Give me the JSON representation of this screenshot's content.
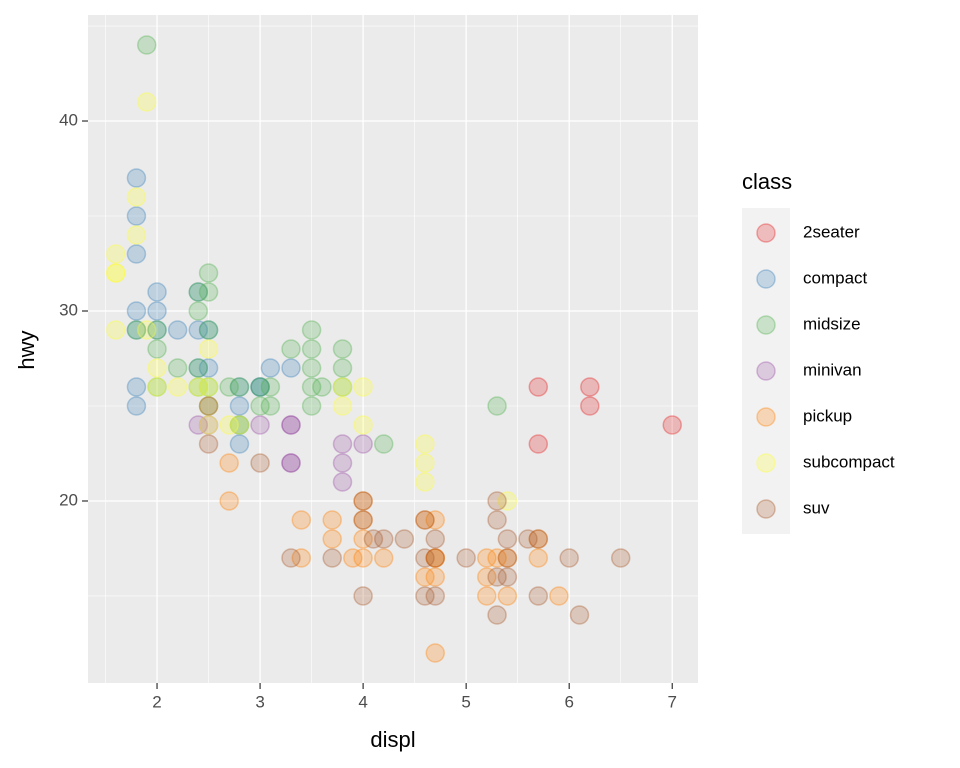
{
  "chart_data": {
    "type": "scatter",
    "x_label": "displ",
    "y_label": "hwy",
    "legend_title": "class",
    "legend": "right",
    "grid": true,
    "alpha": 0.25,
    "xlim": [
      1.33,
      7.25
    ],
    "ylim": [
      10.42,
      45.58
    ],
    "xticks": [
      2,
      3,
      4,
      5,
      6,
      7
    ],
    "yticks": [
      20,
      30,
      40
    ],
    "series": [
      {
        "name": "2seater",
        "color": "#e41a1c",
        "x": [
          5.7,
          5.7,
          6.2,
          6.2,
          7.0
        ],
        "values": [
          26,
          23,
          26,
          25,
          24
        ]
      },
      {
        "name": "compact",
        "color": "#377eb8",
        "x": [
          1.8,
          1.8,
          1.8,
          1.8,
          2.0,
          2.0,
          1.8,
          1.8,
          2.4,
          2.2,
          2.4,
          2.5,
          2.5,
          2.8,
          2.8,
          2.8,
          3.1,
          3.3,
          2.4,
          3.0,
          1.8,
          2.0,
          2.5,
          3.0,
          2.8
        ],
        "values": [
          37,
          35,
          33,
          30,
          31,
          30,
          26,
          25,
          29,
          29,
          31,
          27,
          25,
          25,
          23,
          24,
          27,
          27,
          27,
          26,
          29,
          29,
          29,
          26,
          26
        ]
      },
      {
        "name": "midsize",
        "color": "#4daf4a",
        "x": [
          1.9,
          2.5,
          2.5,
          2.4,
          2.4,
          2.0,
          2.0,
          2.2,
          2.5,
          3.5,
          3.5,
          3.3,
          3.5,
          3.8,
          3.8,
          3.6,
          3.5,
          3.1,
          3.1,
          3.0,
          3.5,
          3.8,
          4.2,
          5.3,
          2.4,
          2.8,
          2.0,
          2.5,
          2.7,
          3.0,
          1.8,
          2.4,
          2.8
        ],
        "values": [
          44,
          32,
          31,
          31,
          30,
          29,
          28,
          27,
          29,
          29,
          28,
          28,
          27,
          28,
          27,
          26,
          26,
          26,
          25,
          25,
          25,
          26,
          23,
          25,
          27,
          26,
          26,
          26,
          26,
          26,
          29,
          26,
          24
        ]
      },
      {
        "name": "minivan",
        "color": "#984ea3",
        "x": [
          2.4,
          3.0,
          3.3,
          3.3,
          3.8,
          3.8,
          3.8,
          4.0,
          3.3,
          3.3,
          2.5
        ],
        "values": [
          24,
          24,
          24,
          22,
          22,
          21,
          23,
          23,
          24,
          22,
          24
        ]
      },
      {
        "name": "pickup",
        "color": "#ff7f00",
        "x": [
          2.7,
          2.7,
          3.4,
          3.4,
          4.0,
          4.0,
          4.0,
          4.0,
          3.7,
          3.7,
          3.9,
          4.7,
          4.7,
          4.7,
          4.7,
          4.6,
          5.2,
          5.2,
          5.2,
          5.4,
          5.4,
          5.7,
          5.7,
          5.9,
          4.2,
          4.7,
          4.6,
          5.3
        ],
        "values": [
          20,
          22,
          19,
          17,
          20,
          19,
          18,
          17,
          19,
          18,
          17,
          19,
          17,
          16,
          12,
          16,
          17,
          15,
          16,
          15,
          17,
          18,
          17,
          15,
          17,
          17,
          19,
          17
        ]
      },
      {
        "name": "subcompact",
        "color": "#ffff33",
        "x": [
          1.9,
          1.8,
          1.8,
          1.6,
          1.6,
          1.6,
          1.6,
          1.9,
          2.0,
          2.0,
          2.2,
          2.5,
          2.5,
          2.5,
          2.8,
          2.7,
          3.8,
          3.8,
          4.0,
          4.0,
          4.6,
          4.6,
          4.6,
          5.4,
          2.4,
          2.5
        ],
        "values": [
          41,
          36,
          34,
          33,
          32,
          32,
          29,
          29,
          27,
          26,
          26,
          26,
          28,
          25,
          24,
          24,
          26,
          25,
          26,
          24,
          23,
          22,
          21,
          20,
          26,
          24
        ]
      },
      {
        "name": "suv",
        "color": "#a65628",
        "x": [
          2.5,
          3.0,
          3.3,
          4.0,
          4.0,
          4.1,
          4.4,
          4.2,
          4.6,
          4.6,
          4.6,
          4.7,
          4.7,
          4.7,
          5.0,
          5.3,
          5.3,
          5.3,
          5.4,
          5.4,
          5.4,
          5.6,
          5.7,
          5.7,
          6.0,
          6.1,
          6.5,
          5.3,
          4.0,
          3.7,
          2.5
        ],
        "values": [
          23,
          22,
          17,
          20,
          19,
          18,
          18,
          18,
          19,
          17,
          15,
          15,
          17,
          18,
          17,
          20,
          19,
          14,
          18,
          16,
          17,
          18,
          18,
          15,
          17,
          14,
          17,
          16,
          15,
          17,
          25
        ]
      }
    ]
  }
}
